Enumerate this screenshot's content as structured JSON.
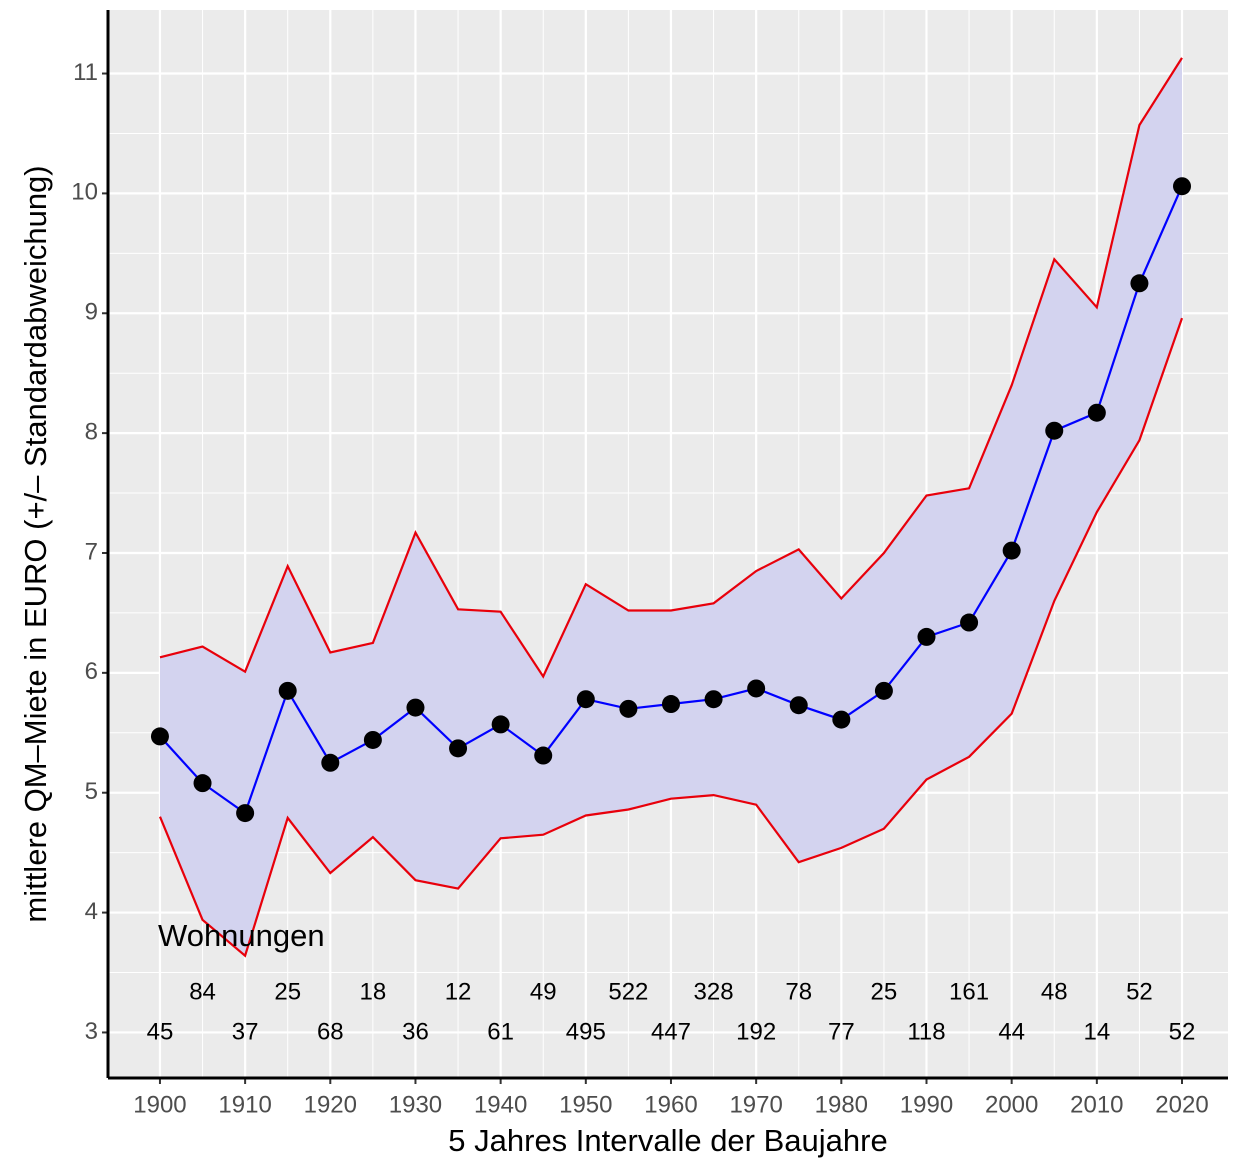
{
  "chart_data": {
    "type": "ribbon-line",
    "x_label": "5 Jahres Intervalle der Baujahre",
    "y_label": "mittlere QM–Miete in EURO (+/– Standardabweichung)",
    "annotation": "Wohnungen",
    "x": [
      1900,
      1905,
      1910,
      1915,
      1920,
      1925,
      1930,
      1935,
      1940,
      1945,
      1950,
      1955,
      1960,
      1965,
      1970,
      1975,
      1980,
      1985,
      1990,
      1995,
      2000,
      2005,
      2010,
      2015,
      2020
    ],
    "values": [
      5.47,
      5.08,
      4.83,
      5.85,
      5.25,
      5.44,
      5.71,
      5.37,
      5.57,
      5.31,
      5.78,
      5.7,
      5.74,
      5.78,
      5.87,
      5.73,
      5.61,
      5.85,
      6.3,
      6.42,
      7.02,
      8.02,
      8.17,
      9.25,
      10.06
    ],
    "color": "#0000ff",
    "point_color": "#000000",
    "band": {
      "upper": [
        6.13,
        6.22,
        6.01,
        6.89,
        6.17,
        6.25,
        7.17,
        6.53,
        6.51,
        5.97,
        6.74,
        6.52,
        6.52,
        6.58,
        6.85,
        7.03,
        6.62,
        7.0,
        7.48,
        7.54,
        8.4,
        9.45,
        9.05,
        10.57,
        11.13
      ],
      "lower": [
        4.8,
        3.94,
        3.64,
        4.79,
        4.33,
        4.63,
        4.27,
        4.2,
        4.62,
        4.65,
        4.81,
        4.86,
        4.95,
        4.98,
        4.9,
        4.42,
        4.54,
        4.7,
        5.11,
        5.3,
        5.66,
        6.6,
        7.34,
        7.94,
        8.96
      ],
      "line_color": "#e8000b",
      "fill_color": "#d3d3ef"
    },
    "counts": [
      45,
      84,
      37,
      25,
      68,
      18,
      36,
      12,
      61,
      49,
      495,
      522,
      447,
      328,
      192,
      78,
      77,
      25,
      118,
      161,
      44,
      48,
      14,
      52,
      52
    ],
    "xlim": [
      1893.9,
      2025.4
    ],
    "ylim": [
      2.62,
      11.53
    ],
    "xticks": [
      1900,
      1910,
      1920,
      1930,
      1940,
      1950,
      1960,
      1970,
      1980,
      1990,
      2000,
      2010,
      2020
    ],
    "yticks": [
      3,
      4,
      5,
      6,
      7,
      8,
      9,
      10,
      11
    ],
    "grid": true
  }
}
